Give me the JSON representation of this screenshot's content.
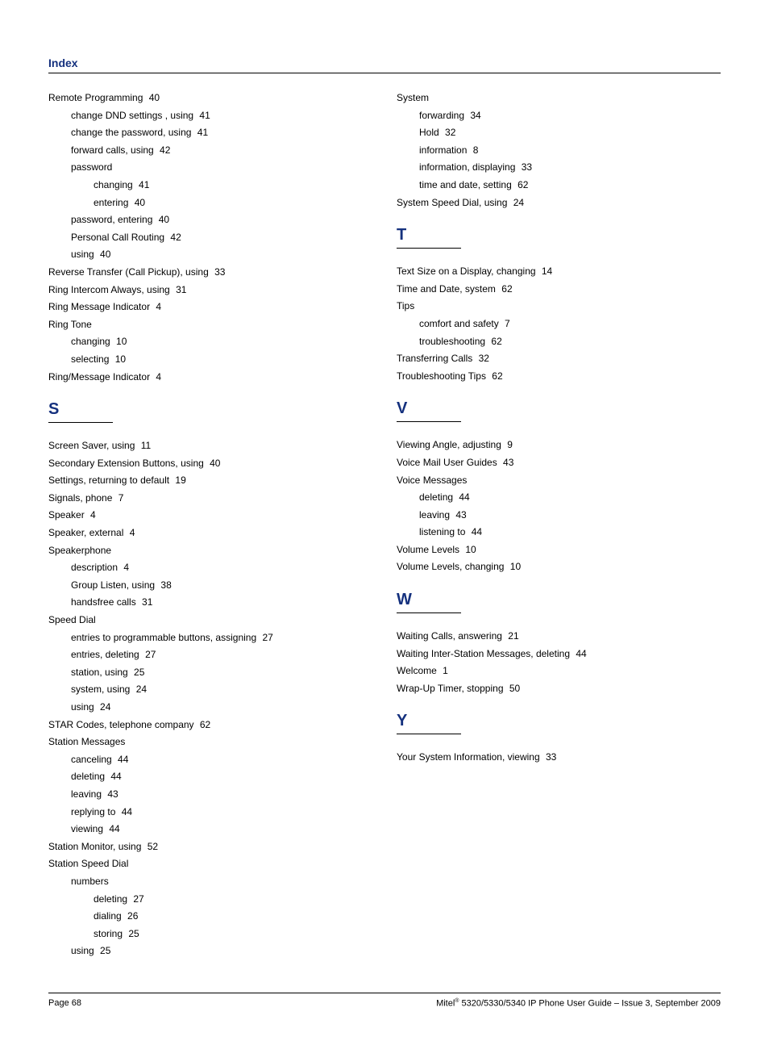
{
  "header": {
    "title": "Index"
  },
  "columns": {
    "left": [
      {
        "type": "entry",
        "level": 0,
        "text": "Remote Programming",
        "page": "40"
      },
      {
        "type": "entry",
        "level": 1,
        "text": "change DND settings , using",
        "page": "41"
      },
      {
        "type": "entry",
        "level": 1,
        "text": "change the password, using",
        "page": "41"
      },
      {
        "type": "entry",
        "level": 1,
        "text": "forward calls, using",
        "page": "42"
      },
      {
        "type": "entry",
        "level": 1,
        "text": "password",
        "page": ""
      },
      {
        "type": "entry",
        "level": 2,
        "text": "changing",
        "page": "41"
      },
      {
        "type": "entry",
        "level": 2,
        "text": "entering",
        "page": "40"
      },
      {
        "type": "entry",
        "level": 1,
        "text": "password, entering",
        "page": "40"
      },
      {
        "type": "entry",
        "level": 1,
        "text": "Personal Call Routing",
        "page": "42"
      },
      {
        "type": "entry",
        "level": 1,
        "text": "using",
        "page": "40"
      },
      {
        "type": "entry",
        "level": 0,
        "text": "Reverse Transfer (Call Pickup), using",
        "page": "33"
      },
      {
        "type": "entry",
        "level": 0,
        "text": "Ring Intercom Always, using",
        "page": "31"
      },
      {
        "type": "entry",
        "level": 0,
        "text": "Ring Message Indicator",
        "page": "4"
      },
      {
        "type": "entry",
        "level": 0,
        "text": "Ring Tone",
        "page": ""
      },
      {
        "type": "entry",
        "level": 1,
        "text": "changing",
        "page": "10"
      },
      {
        "type": "entry",
        "level": 1,
        "text": "selecting",
        "page": "10"
      },
      {
        "type": "entry",
        "level": 0,
        "text": "Ring/Message Indicator",
        "page": "4"
      },
      {
        "type": "section",
        "letter": "S"
      },
      {
        "type": "entry",
        "level": 0,
        "text": "Screen Saver, using",
        "page": "11"
      },
      {
        "type": "entry",
        "level": 0,
        "text": "Secondary Extension Buttons, using",
        "page": "40"
      },
      {
        "type": "entry",
        "level": 0,
        "text": "Settings, returning to default",
        "page": "19"
      },
      {
        "type": "entry",
        "level": 0,
        "text": "Signals, phone",
        "page": "7"
      },
      {
        "type": "entry",
        "level": 0,
        "text": "Speaker",
        "page": "4"
      },
      {
        "type": "entry",
        "level": 0,
        "text": "Speaker, external",
        "page": "4"
      },
      {
        "type": "entry",
        "level": 0,
        "text": "Speakerphone",
        "page": ""
      },
      {
        "type": "entry",
        "level": 1,
        "text": "description",
        "page": "4"
      },
      {
        "type": "entry",
        "level": 1,
        "text": "Group Listen, using",
        "page": "38"
      },
      {
        "type": "entry",
        "level": 1,
        "text": "handsfree calls",
        "page": "31"
      },
      {
        "type": "entry",
        "level": 0,
        "text": "Speed Dial",
        "page": ""
      },
      {
        "type": "entry",
        "level": 1,
        "text": "entries to programmable buttons, assigning",
        "page": "27"
      },
      {
        "type": "entry",
        "level": 1,
        "text": "entries, deleting",
        "page": "27"
      },
      {
        "type": "entry",
        "level": 1,
        "text": "station, using",
        "page": "25"
      },
      {
        "type": "entry",
        "level": 1,
        "text": "system, using",
        "page": "24"
      },
      {
        "type": "entry",
        "level": 1,
        "text": "using",
        "page": "24"
      },
      {
        "type": "entry",
        "level": 0,
        "text": "STAR Codes, telephone company",
        "page": "62"
      },
      {
        "type": "entry",
        "level": 0,
        "text": "Station Messages",
        "page": ""
      },
      {
        "type": "entry",
        "level": 1,
        "text": "canceling",
        "page": "44"
      },
      {
        "type": "entry",
        "level": 1,
        "text": "deleting",
        "page": "44"
      },
      {
        "type": "entry",
        "level": 1,
        "text": "leaving",
        "page": "43"
      },
      {
        "type": "entry",
        "level": 1,
        "text": "replying to",
        "page": "44"
      },
      {
        "type": "entry",
        "level": 1,
        "text": "viewing",
        "page": "44"
      },
      {
        "type": "entry",
        "level": 0,
        "text": "Station Monitor, using",
        "page": "52"
      },
      {
        "type": "entry",
        "level": 0,
        "text": "Station Speed Dial",
        "page": ""
      },
      {
        "type": "entry",
        "level": 1,
        "text": "numbers",
        "page": ""
      },
      {
        "type": "entry",
        "level": 2,
        "text": "deleting",
        "page": "27"
      },
      {
        "type": "entry",
        "level": 2,
        "text": "dialing",
        "page": "26"
      },
      {
        "type": "entry",
        "level": 2,
        "text": "storing",
        "page": "25"
      },
      {
        "type": "entry",
        "level": 1,
        "text": "using",
        "page": "25"
      }
    ],
    "right": [
      {
        "type": "entry",
        "level": 0,
        "text": "System",
        "page": ""
      },
      {
        "type": "entry",
        "level": 1,
        "text": "forwarding",
        "page": "34"
      },
      {
        "type": "entry",
        "level": 1,
        "text": "Hold",
        "page": "32"
      },
      {
        "type": "entry",
        "level": 1,
        "text": "information",
        "page": "8"
      },
      {
        "type": "entry",
        "level": 1,
        "text": "information, displaying",
        "page": "33"
      },
      {
        "type": "entry",
        "level": 1,
        "text": "time and date, setting",
        "page": "62"
      },
      {
        "type": "entry",
        "level": 0,
        "text": "System Speed Dial, using",
        "page": "24"
      },
      {
        "type": "section",
        "letter": "T"
      },
      {
        "type": "entry",
        "level": 0,
        "text": "Text Size on a Display, changing",
        "page": "14"
      },
      {
        "type": "entry",
        "level": 0,
        "text": "Time and Date, system",
        "page": "62"
      },
      {
        "type": "entry",
        "level": 0,
        "text": "Tips",
        "page": ""
      },
      {
        "type": "entry",
        "level": 1,
        "text": "comfort and safety",
        "page": "7"
      },
      {
        "type": "entry",
        "level": 1,
        "text": "troubleshooting",
        "page": "62"
      },
      {
        "type": "entry",
        "level": 0,
        "text": "Transferring Calls",
        "page": "32"
      },
      {
        "type": "entry",
        "level": 0,
        "text": "Troubleshooting Tips",
        "page": "62"
      },
      {
        "type": "section",
        "letter": "V"
      },
      {
        "type": "entry",
        "level": 0,
        "text": "Viewing Angle, adjusting",
        "page": "9"
      },
      {
        "type": "entry",
        "level": 0,
        "text": "Voice Mail User Guides",
        "page": "43"
      },
      {
        "type": "entry",
        "level": 0,
        "text": "Voice Messages",
        "page": ""
      },
      {
        "type": "entry",
        "level": 1,
        "text": "deleting",
        "page": "44"
      },
      {
        "type": "entry",
        "level": 1,
        "text": "leaving",
        "page": "43"
      },
      {
        "type": "entry",
        "level": 1,
        "text": "listening to",
        "page": "44"
      },
      {
        "type": "entry",
        "level": 0,
        "text": "Volume Levels",
        "page": "10"
      },
      {
        "type": "entry",
        "level": 0,
        "text": "Volume Levels, changing",
        "page": "10"
      },
      {
        "type": "section",
        "letter": "W"
      },
      {
        "type": "entry",
        "level": 0,
        "text": "Waiting Calls, answering",
        "page": "21"
      },
      {
        "type": "entry",
        "level": 0,
        "text": "Waiting Inter-Station Messages, deleting",
        "page": "44"
      },
      {
        "type": "entry",
        "level": 0,
        "text": "Welcome",
        "page": "1"
      },
      {
        "type": "entry",
        "level": 0,
        "text": "Wrap-Up Timer, stopping",
        "page": "50"
      },
      {
        "type": "section",
        "letter": "Y"
      },
      {
        "type": "entry",
        "level": 0,
        "text": "Your System Information, viewing",
        "page": "33"
      }
    ]
  },
  "footer": {
    "left": "Page 68",
    "right_prefix": "Mitel",
    "right_suffix": " 5320/5330/5340 IP Phone User Guide  – Issue 3, September 2009"
  }
}
